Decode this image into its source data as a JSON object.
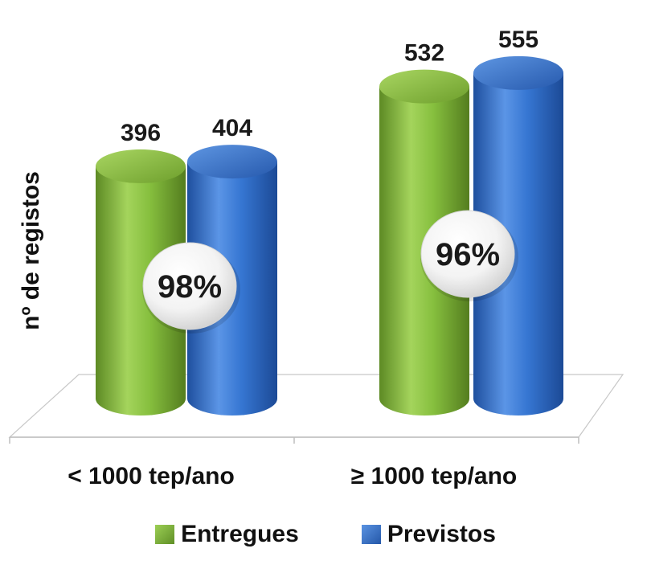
{
  "chart_data": {
    "type": "bar",
    "style": "3d-cylinder",
    "title": "",
    "xlabel": "",
    "ylabel": "nº de registos",
    "categories": [
      "< 1000 tep/ano",
      "≥ 1000 tep/ano"
    ],
    "series": [
      {
        "name": "Entregues",
        "values": [
          396,
          532
        ],
        "color": "#7db53a"
      },
      {
        "name": "Previstos",
        "values": [
          404,
          555
        ],
        "color": "#2f6fcb"
      }
    ],
    "annotations": [
      "98%",
      "96%"
    ],
    "data_labels": true,
    "grid": false,
    "legend_position": "bottom"
  }
}
